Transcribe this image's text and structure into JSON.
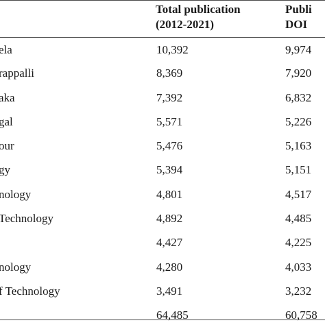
{
  "table": {
    "headers": {
      "col2_line1": "Total publication",
      "col2_line2": "(2012-2021)",
      "col3_line1": "Publi",
      "col3_line2": "DOI"
    },
    "rows": [
      {
        "name": "ela",
        "total": "10,392",
        "doi": "9,974"
      },
      {
        "name": "rappalli",
        "total": "8,369",
        "doi": "7,920"
      },
      {
        "name": "aka",
        "total": "7,392",
        "doi": "6,832"
      },
      {
        "name": "gal",
        "total": "5,571",
        "doi": "5,226"
      },
      {
        "name": "our",
        "total": "5,476",
        "doi": "5,163"
      },
      {
        "name": "gy",
        "total": "5,394",
        "doi": "5,151"
      },
      {
        "name": "nology",
        "total": "4,801",
        "doi": "4,517"
      },
      {
        "name": "Technology",
        "total": "4,892",
        "doi": "4,485"
      },
      {
        "name": "",
        "total": "4,427",
        "doi": "4,225"
      },
      {
        "name": "nology",
        "total": "4,280",
        "doi": "4,033"
      },
      {
        "name": "f Technology",
        "total": "3,491",
        "doi": "3,232"
      },
      {
        "name": "",
        "total": "64,485",
        "doi": "60,758"
      }
    ]
  }
}
